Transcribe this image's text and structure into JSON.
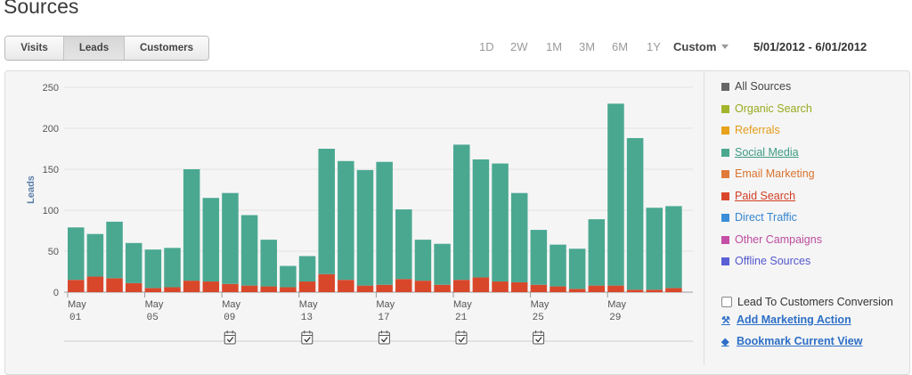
{
  "page_title": "Sources",
  "tabs": [
    {
      "label": "Visits",
      "active": false
    },
    {
      "label": "Leads",
      "active": true
    },
    {
      "label": "Customers",
      "active": false
    }
  ],
  "ranges": [
    "1D",
    "2W",
    "1M",
    "3M",
    "6M",
    "1Y"
  ],
  "custom_label": "Custom",
  "date_range": "5/01/2012 - 6/01/2012",
  "legend": [
    {
      "label": "All Sources",
      "color": "#666666",
      "text_color": "#444444",
      "underline": false
    },
    {
      "label": "Organic Search",
      "color": "#a2b42a",
      "text_color": "#98aa1e",
      "underline": false
    },
    {
      "label": "Referrals",
      "color": "#e8a21c",
      "text_color": "#e19b16",
      "underline": false
    },
    {
      "label": "Social Media",
      "color": "#4aa891",
      "text_color": "#3d9b84",
      "underline": true
    },
    {
      "label": "Email Marketing",
      "color": "#e07b39",
      "text_color": "#d9732f",
      "underline": false
    },
    {
      "label": "Paid Search",
      "color": "#d9472b",
      "text_color": "#d13e24",
      "underline": true
    },
    {
      "label": "Direct Traffic",
      "color": "#3b8ed8",
      "text_color": "#3585d0",
      "underline": false
    },
    {
      "label": "Other Campaigns",
      "color": "#c44fa6",
      "text_color": "#bd4c9f",
      "underline": false
    },
    {
      "label": "Offline Sources",
      "color": "#5a5fd6",
      "text_color": "#5358cd",
      "underline": false
    }
  ],
  "checkbox_label": "Lead To Customers Conversion",
  "actions": {
    "add_marketing": "Add Marketing Action",
    "bookmark": "Bookmark Current View"
  },
  "chart_data": {
    "type": "bar",
    "stacked": true,
    "ylabel": "Leads",
    "ylim": [
      0,
      250
    ],
    "yticks": [
      0,
      50,
      100,
      150,
      200,
      250
    ],
    "x_tick_labels": [
      {
        "month": "May",
        "day": "01",
        "index": 0
      },
      {
        "month": "May",
        "day": "05",
        "index": 4
      },
      {
        "month": "May",
        "day": "09",
        "index": 8
      },
      {
        "month": "May",
        "day": "13",
        "index": 12
      },
      {
        "month": "May",
        "day": "17",
        "index": 16
      },
      {
        "month": "May",
        "day": "21",
        "index": 20
      },
      {
        "month": "May",
        "day": "25",
        "index": 24
      },
      {
        "month": "May",
        "day": "29",
        "index": 28
      }
    ],
    "series": [
      {
        "name": "Paid Search",
        "color": "#d9472b",
        "values": [
          15,
          19,
          17,
          11,
          5,
          6,
          14,
          13,
          10,
          8,
          7,
          6,
          13,
          22,
          15,
          8,
          9,
          16,
          14,
          9,
          15,
          18,
          13,
          12,
          9,
          7,
          4,
          8,
          8,
          3,
          3,
          5
        ]
      },
      {
        "name": "Social Media",
        "color": "#4aa891",
        "values": [
          64,
          52,
          69,
          49,
          47,
          48,
          136,
          102,
          111,
          86,
          57,
          26,
          31,
          153,
          145,
          141,
          150,
          85,
          50,
          50,
          165,
          144,
          144,
          109,
          67,
          51,
          49,
          81,
          222,
          185,
          100,
          100
        ]
      }
    ],
    "markers_at_index": [
      8,
      12,
      16,
      20,
      24
    ]
  }
}
